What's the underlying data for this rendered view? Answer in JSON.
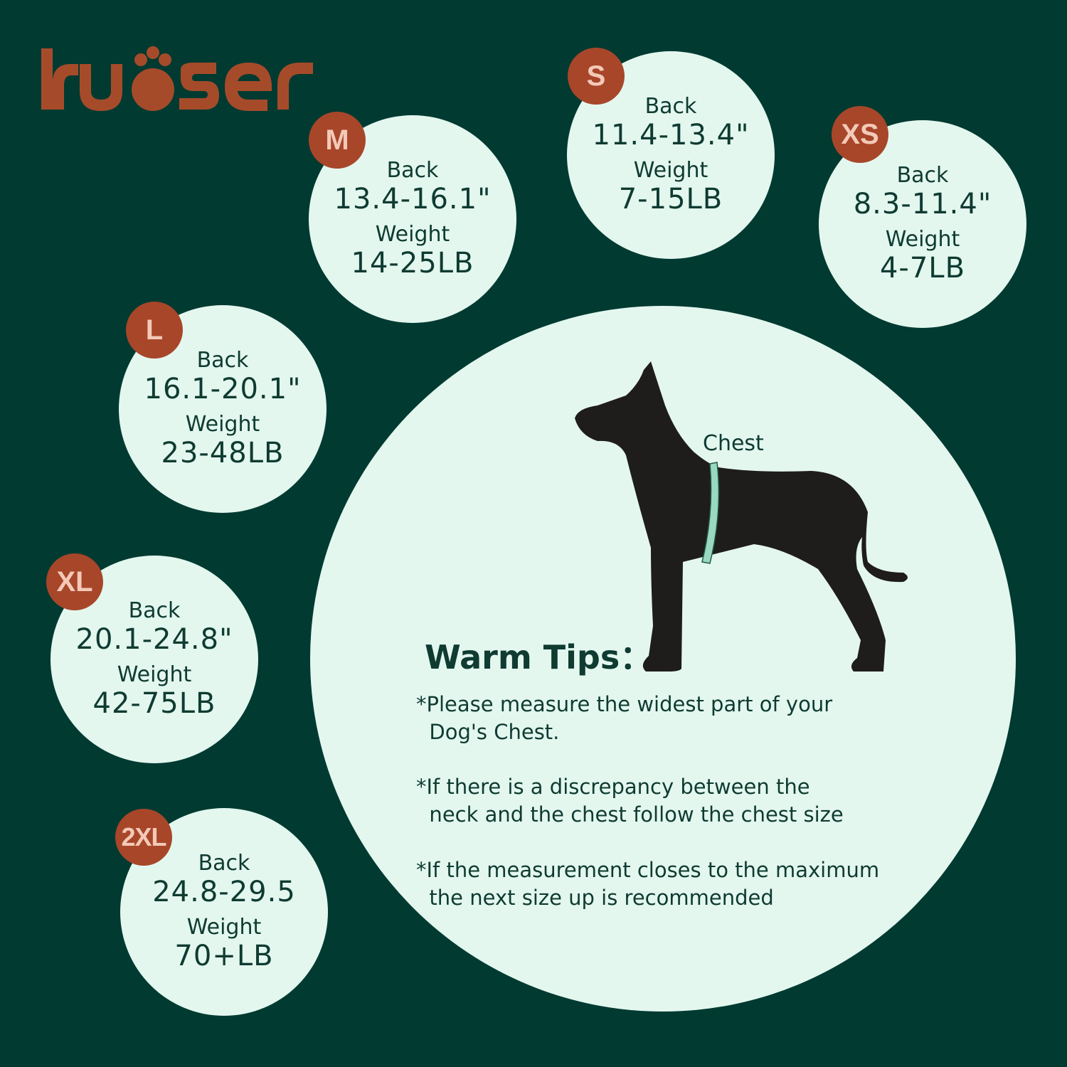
{
  "brand": {
    "name": "kuoser",
    "color": "#a64b2a"
  },
  "colors": {
    "background": "#003a31",
    "circle": "#e3f7ef",
    "badge": "#a8462a",
    "text": "#0f3b31"
  },
  "sizes": [
    {
      "size": "XS",
      "back_label": "Back",
      "back": "8.3-11.4\"",
      "weight_label": "Weight",
      "weight": "4-7LB"
    },
    {
      "size": "S",
      "back_label": "Back",
      "back": "11.4-13.4\"",
      "weight_label": "Weight",
      "weight": "7-15LB"
    },
    {
      "size": "M",
      "back_label": "Back",
      "back": "13.4-16.1\"",
      "weight_label": "Weight",
      "weight": "14-25LB"
    },
    {
      "size": "L",
      "back_label": "Back",
      "back": "16.1-20.1\"",
      "weight_label": "Weight",
      "weight": "23-48LB"
    },
    {
      "size": "XL",
      "back_label": "Back",
      "back": "20.1-24.8\"",
      "weight_label": "Weight",
      "weight": "42-75LB"
    },
    {
      "size": "2XL",
      "back_label": "Back",
      "back": "24.8-29.5",
      "weight_label": "Weight",
      "weight": "70+LB"
    }
  ],
  "illustration": {
    "chest_label": "Chest",
    "icon": "dog-silhouette-with-measuring-tape"
  },
  "tips": {
    "title": "Warm Tips：",
    "items": [
      "*Please measure the widest part of your\n  Dog's Chest.",
      "*If there is a discrepancy between the\n  neck and the chest follow the chest size",
      "*If the measurement closes to the maximum\n  the next size up is recommended"
    ]
  }
}
